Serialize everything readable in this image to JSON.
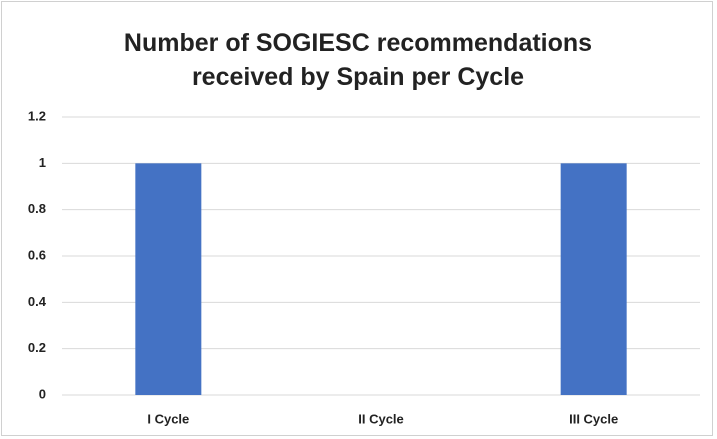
{
  "chart_data": {
    "type": "bar",
    "title": "Number of SOGIESC recommendations received by Spain per Cycle",
    "categories": [
      "I Cycle",
      "II Cycle",
      "III Cycle"
    ],
    "values": [
      1,
      0,
      1
    ],
    "color": "#4472c4",
    "ylim": [
      0,
      1.2
    ],
    "yticks": [
      0,
      0.2,
      0.4,
      0.6,
      0.8,
      1,
      1.2
    ],
    "grid": true
  }
}
